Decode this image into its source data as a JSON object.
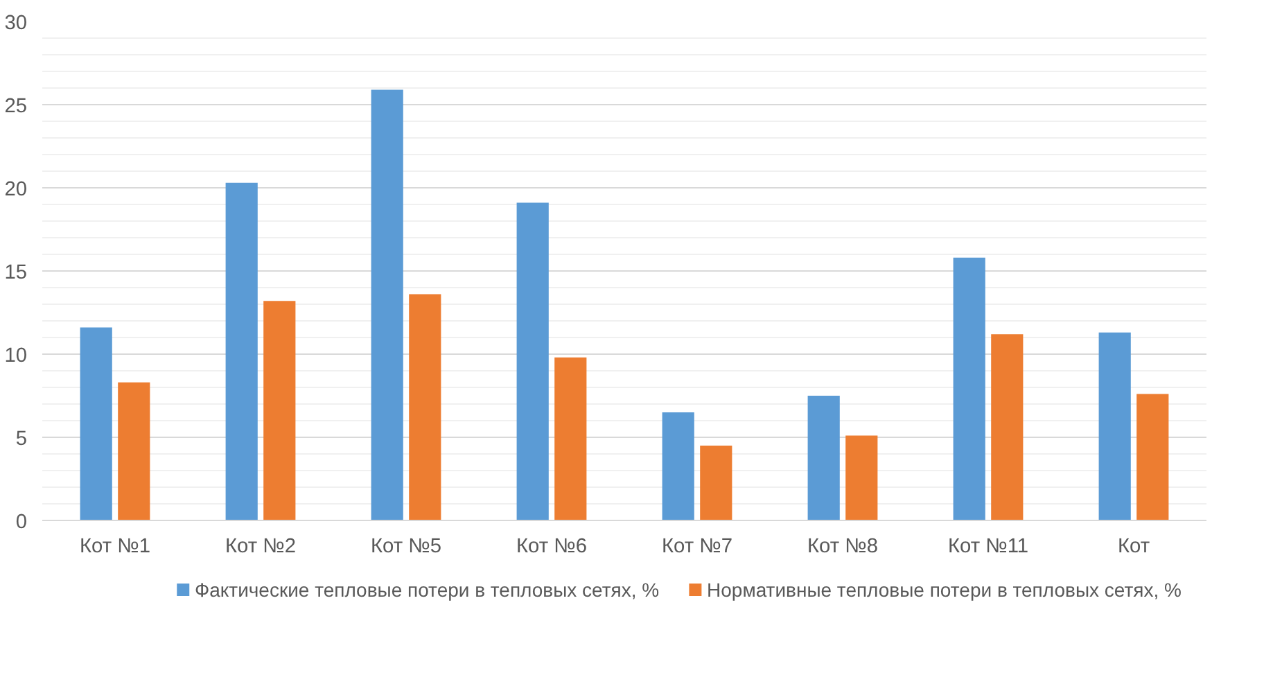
{
  "chart_data": {
    "type": "bar",
    "categories": [
      "Кот №1",
      "Кот №2",
      "Кот №5",
      "Кот №6",
      "Кот №7",
      "Кот №8",
      "Кот №11",
      "Кот"
    ],
    "series": [
      {
        "name": "Фактические тепловые потери в тепловых сетях, %",
        "color": "#5b9bd5",
        "values": [
          11.6,
          20.3,
          25.9,
          19.1,
          6.5,
          7.5,
          15.8,
          11.3
        ]
      },
      {
        "name": "Нормативные тепловые потери в тепловых сетях, %",
        "color": "#ed7d31",
        "values": [
          8.3,
          13.2,
          13.6,
          9.8,
          4.5,
          5.1,
          11.2,
          7.6
        ]
      }
    ],
    "ylim": [
      0,
      30
    ],
    "yticks": [
      0,
      5,
      10,
      15,
      20,
      25,
      30
    ],
    "grid": "y",
    "legend": "bottom"
  }
}
